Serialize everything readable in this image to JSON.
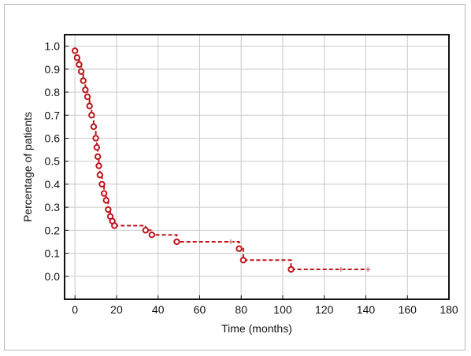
{
  "chart_data": {
    "type": "line",
    "title": "",
    "xlabel": "Time (months)",
    "ylabel": "Percentage of patients",
    "xlim": [
      -5,
      180
    ],
    "ylim": [
      -0.1,
      1.05
    ],
    "x_ticks": [
      0,
      20,
      40,
      60,
      80,
      100,
      120,
      140,
      160,
      180
    ],
    "y_ticks": [
      "0.0",
      "0.1",
      "0.2",
      "0.3",
      "0.4",
      "0.5",
      "0.6",
      "0.7",
      "0.8",
      "0.9",
      "1.0"
    ],
    "y_tick_values": [
      0.0,
      0.1,
      0.2,
      0.3,
      0.4,
      0.5,
      0.6,
      0.7,
      0.8,
      0.9,
      1.0
    ],
    "grid": true,
    "line_color": "#c0141c",
    "line_style": "dashed",
    "steps": [
      [
        0,
        0.98
      ],
      [
        1,
        0.95
      ],
      [
        2,
        0.92
      ],
      [
        3,
        0.89
      ],
      [
        4,
        0.85
      ],
      [
        5,
        0.81
      ],
      [
        6,
        0.78
      ],
      [
        7,
        0.74
      ],
      [
        8,
        0.7
      ],
      [
        9,
        0.65
      ],
      [
        10,
        0.6
      ],
      [
        10.5,
        0.56
      ],
      [
        11,
        0.52
      ],
      [
        11.5,
        0.48
      ],
      [
        12,
        0.44
      ],
      [
        13,
        0.4
      ],
      [
        14,
        0.36
      ],
      [
        15,
        0.33
      ],
      [
        16,
        0.29
      ],
      [
        17,
        0.26
      ],
      [
        18,
        0.24
      ],
      [
        19,
        0.22
      ],
      [
        34,
        0.2
      ],
      [
        37,
        0.18
      ],
      [
        49,
        0.15
      ],
      [
        79,
        0.12
      ],
      [
        81,
        0.07
      ],
      [
        104,
        0.03
      ],
      [
        142,
        0.03
      ]
    ],
    "event_markers": [
      [
        0,
        0.98
      ],
      [
        1,
        0.95
      ],
      [
        2,
        0.92
      ],
      [
        3,
        0.89
      ],
      [
        4,
        0.85
      ],
      [
        5,
        0.81
      ],
      [
        6,
        0.78
      ],
      [
        7,
        0.74
      ],
      [
        8,
        0.7
      ],
      [
        9,
        0.65
      ],
      [
        10,
        0.6
      ],
      [
        10.5,
        0.56
      ],
      [
        11,
        0.52
      ],
      [
        11.5,
        0.48
      ],
      [
        12,
        0.44
      ],
      [
        13,
        0.4
      ],
      [
        14,
        0.36
      ],
      [
        15,
        0.33
      ],
      [
        16,
        0.29
      ],
      [
        17,
        0.26
      ],
      [
        18,
        0.24
      ],
      [
        19,
        0.22
      ],
      [
        34,
        0.2
      ],
      [
        37,
        0.18
      ],
      [
        49,
        0.15
      ],
      [
        79,
        0.12
      ],
      [
        81,
        0.07
      ],
      [
        104,
        0.03
      ]
    ],
    "censored_markers": [
      [
        75,
        0.15
      ],
      [
        128,
        0.03
      ],
      [
        141,
        0.03
      ]
    ]
  }
}
